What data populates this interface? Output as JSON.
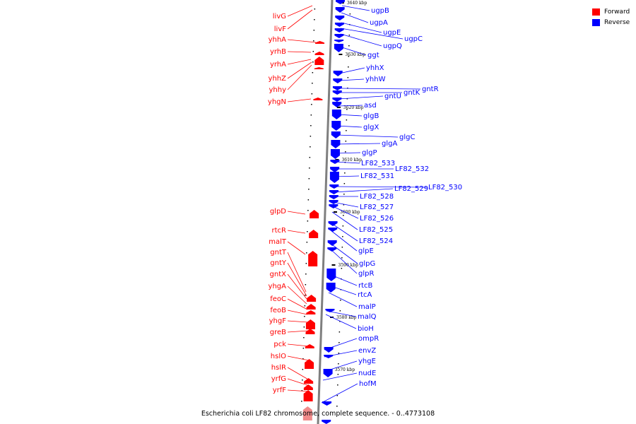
{
  "legend": {
    "forward": {
      "label": "Forward",
      "color": "#ff0000"
    },
    "reverse": {
      "label": "Reverse",
      "color": "#0000ff"
    }
  },
  "caption": "Escherichia coli LF82 chromosome, complete sequence. - 0..4773108",
  "scale_ticks": [
    "3640 kbp",
    "3630 kbp",
    "3620 kbp",
    "3610 kbp",
    "3600 kbp",
    "3590 kbp",
    "3580 kbp",
    "3570 kbp"
  ],
  "forward_genes": [
    "livG",
    "livF",
    "yhhA",
    "yrhB",
    "yrhA",
    "yhhZ",
    "yhhy",
    "yhgN",
    "glpD",
    "rtcR",
    "malT",
    "gntT",
    "gntY",
    "gntX",
    "yhgA",
    "feoC",
    "feoB",
    "yhgF",
    "greB",
    "pck",
    "hslO",
    "hslR",
    "yrfG",
    "yrfF"
  ],
  "reverse_genes": [
    "ugpB",
    "ugpA",
    "ugpE",
    "ugpC",
    "ugpQ",
    "ggt",
    "yhhX",
    "yhhW",
    "gntR",
    "gntK",
    "gntU",
    "asd",
    "glgB",
    "glgX",
    "glgC",
    "glgA",
    "glgP",
    "LF82_533",
    "LF82_532",
    "LF82_531",
    "LF82_530",
    "LF82_529",
    "LF82_528",
    "LF82_527",
    "LF82_526",
    "LF82_525",
    "LF82_524",
    "glpE",
    "glpG",
    "glpR",
    "rtcB",
    "rtcA",
    "malP",
    "malQ",
    "bioH",
    "ompR",
    "envZ",
    "yhgE",
    "nudE",
    "hofM"
  ]
}
